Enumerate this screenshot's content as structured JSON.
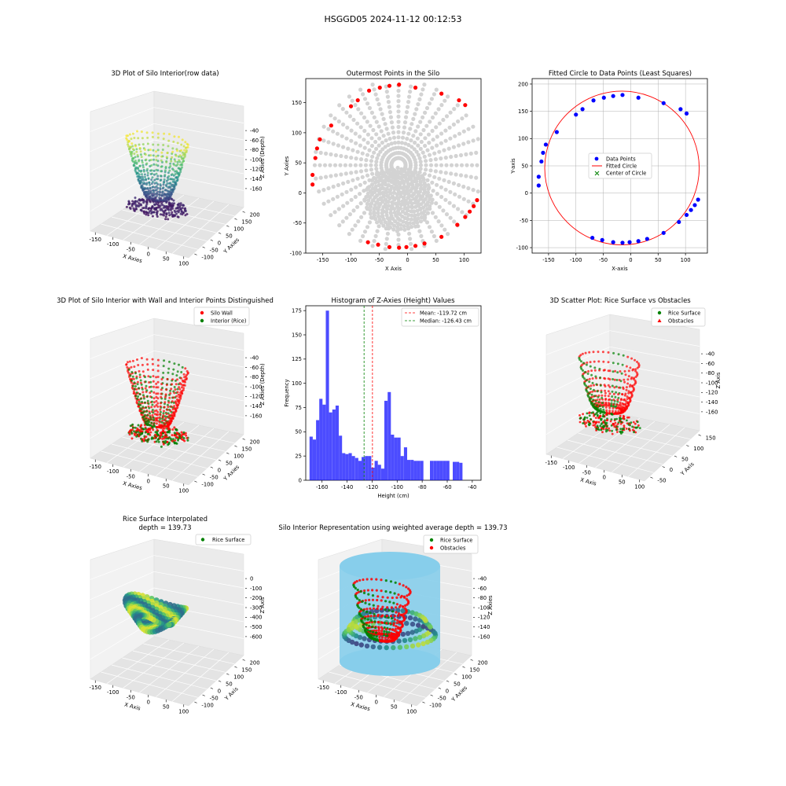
{
  "figure": {
    "suptitle": "HSGGD05 2024-11-12 00:12:53"
  },
  "chart_data": [
    {
      "id": "p1",
      "type": "scatter3d",
      "title": "3D Plot of Silo Interior(row data)",
      "xlabel": "X Axies",
      "ylabel": "Y Axies",
      "zlabel": "Z Axies (Depth)",
      "xticks": [
        "-150",
        "-100",
        "-50",
        "0",
        "50",
        "100"
      ],
      "yticks": [
        "-100",
        "-50",
        "0",
        "50",
        "100",
        "150",
        "200"
      ],
      "zticks": [
        "-40",
        "-60",
        "-80",
        "-100",
        "-120",
        "-140",
        "-160"
      ],
      "colormap": "viridis"
    },
    {
      "id": "p2",
      "type": "scatter",
      "title": "Outermost Points in the Silo",
      "xlabel": "X Axis",
      "ylabel": "Y Axies",
      "xlim": [
        -180,
        130
      ],
      "ylim": [
        -100,
        190
      ],
      "xticks": [
        -150,
        -100,
        -50,
        0,
        50,
        100
      ],
      "yticks": [
        -100,
        -50,
        0,
        50,
        100,
        150
      ],
      "outer_points": [
        [
          -168,
          14
        ],
        [
          -168,
          30
        ],
        [
          -163,
          58
        ],
        [
          -160,
          74
        ],
        [
          -155,
          89
        ],
        [
          -135,
          112
        ],
        [
          -100,
          144
        ],
        [
          -88,
          154
        ],
        [
          -68,
          170
        ],
        [
          -49,
          175
        ],
        [
          -32,
          178
        ],
        [
          -15,
          180
        ],
        [
          14,
          175
        ],
        [
          60,
          165
        ],
        [
          91,
          154
        ],
        [
          102,
          146
        ],
        [
          123,
          -12
        ],
        [
          117,
          -22
        ],
        [
          110,
          -31
        ],
        [
          102,
          -40
        ],
        [
          88,
          -53
        ],
        [
          60,
          -73
        ],
        [
          30,
          -84
        ],
        [
          14,
          -88
        ],
        [
          -2,
          -90
        ],
        [
          -15,
          -91
        ],
        [
          -32,
          -90
        ],
        [
          -52,
          -86
        ],
        [
          -70,
          -82
        ]
      ],
      "colors": {
        "outer": "#ff0000",
        "inner": "#d3d3d3"
      }
    },
    {
      "id": "p3",
      "type": "scatter",
      "title": "Fitted Circle to Data Points (Least Squares)",
      "xlabel": "X-axis",
      "ylabel": "Y-axis",
      "xlim": [
        -180,
        140
      ],
      "ylim": [
        -110,
        210
      ],
      "xticks": [
        -150,
        -100,
        -50,
        0,
        50,
        100
      ],
      "yticks": [
        -100,
        -50,
        0,
        50,
        100,
        150,
        200
      ],
      "points": [
        [
          -168,
          14
        ],
        [
          -168,
          30
        ],
        [
          -163,
          58
        ],
        [
          -160,
          74
        ],
        [
          -155,
          89
        ],
        [
          -135,
          112
        ],
        [
          -100,
          144
        ],
        [
          -88,
          154
        ],
        [
          -68,
          170
        ],
        [
          -49,
          175
        ],
        [
          -32,
          178
        ],
        [
          -15,
          180
        ],
        [
          14,
          175
        ],
        [
          60,
          165
        ],
        [
          91,
          154
        ],
        [
          102,
          146
        ],
        [
          123,
          -12
        ],
        [
          117,
          -22
        ],
        [
          110,
          -31
        ],
        [
          102,
          -40
        ],
        [
          88,
          -53
        ],
        [
          60,
          -73
        ],
        [
          30,
          -84
        ],
        [
          14,
          -88
        ],
        [
          -2,
          -90
        ],
        [
          -15,
          -91
        ],
        [
          -32,
          -90
        ],
        [
          -52,
          -86
        ],
        [
          -70,
          -82
        ]
      ],
      "circle": {
        "cx": -16,
        "cy": 46,
        "r": 141
      },
      "legend": [
        "Data Points",
        "Fitted Circle",
        "Center of Circle"
      ],
      "colors": {
        "points": "#0000ff",
        "circle": "#ff0000",
        "center": "#008000"
      }
    },
    {
      "id": "p4",
      "type": "scatter3d",
      "title": "3D Plot of Silo Interior with Wall and Interior Points Distinguished",
      "xlabel": "X Axies",
      "ylabel": "Y Axies",
      "zlabel": "Z Axies (Depth)",
      "xticks": [
        "-150",
        "-100",
        "-50",
        "0",
        "50",
        "100"
      ],
      "yticks": [
        "-100",
        "-50",
        "0",
        "50",
        "100",
        "150",
        "200"
      ],
      "zticks": [
        "-40",
        "-60",
        "-80",
        "-100",
        "-120",
        "-140",
        "-160"
      ],
      "legend": [
        "Silo Wall",
        "Interior (Rice)"
      ],
      "colors": {
        "wall": "#ff0000",
        "interior": "#008000"
      }
    },
    {
      "id": "p5",
      "type": "bar",
      "title": "Histogram of Z-Axies (Height) Values",
      "xlabel": "Height (cm)",
      "ylabel": "Frequency",
      "xlim": [
        -173,
        -33
      ],
      "ylim": [
        0,
        180
      ],
      "xticks": [
        -160,
        -140,
        -120,
        -100,
        -80,
        -60,
        -40
      ],
      "yticks": [
        0,
        25,
        50,
        75,
        100,
        125,
        150,
        175
      ],
      "bin_start": -170,
      "bin_width": 2.6,
      "values": [
        45,
        42,
        62,
        84,
        78,
        175,
        70,
        73,
        77,
        46,
        28,
        27,
        28,
        25,
        23,
        20,
        24,
        25,
        25,
        13,
        20,
        16,
        12,
        82,
        91,
        47,
        44,
        44,
        25,
        34,
        21,
        21,
        20,
        20,
        20,
        0,
        0,
        20,
        20,
        20,
        20,
        20,
        20,
        0,
        19,
        19,
        18
      ],
      "mean": -119.72,
      "median": -126.43,
      "legend": [
        "Mean: -119.72 cm",
        "Median: -126.43 cm"
      ],
      "colors": {
        "bars": "#0000ff",
        "mean": "#ff0000",
        "median": "#008000"
      }
    },
    {
      "id": "p6",
      "type": "scatter3d",
      "title": "3D Scatter Plot: Rice Surface vs Obstacles",
      "xlabel": "X Axis",
      "ylabel": "Y Axis",
      "zlabel": "Z Axis",
      "xticks": [
        "-150",
        "-100",
        "-50",
        "0",
        "50",
        "100"
      ],
      "yticks": [
        "-50",
        "0",
        "50",
        "100",
        "150"
      ],
      "zticks": [
        "-40",
        "-60",
        "-80",
        "-100",
        "-120",
        "-140",
        "-160"
      ],
      "legend": [
        "Rice Surface",
        "Obstacles"
      ],
      "colors": {
        "rice": "#008000",
        "obstacles": "#ff0000"
      }
    },
    {
      "id": "p7",
      "type": "surface3d",
      "title": "Rice Surface Interpolated",
      "subtitle": "depth = 139.73",
      "xlabel": "X Axis",
      "ylabel": "Y Axis",
      "zlabel": "Z Axis",
      "xticks": [
        "-150",
        "-100",
        "-50",
        "0",
        "50",
        "100"
      ],
      "yticks": [
        "-100",
        "-50",
        "0",
        "50",
        "100",
        "150",
        "200"
      ],
      "zticks": [
        "0",
        "-100",
        "-200",
        "-300",
        "-400",
        "-500",
        "-600"
      ],
      "legend": [
        "Rice Surface"
      ],
      "colors": {
        "rice": "#008000"
      }
    },
    {
      "id": "p8",
      "type": "surface3d",
      "title": "Silo Interior Representation using weighted average depth = 139.73",
      "xlabel": "X Axies",
      "ylabel": "Y Axies",
      "zlabel": "Z Axies",
      "xticks": [
        "-150",
        "-100",
        "-50",
        "0",
        "50",
        "100"
      ],
      "yticks": [
        "-100",
        "-50",
        "0",
        "50",
        "100",
        "150",
        "200"
      ],
      "zticks": [
        "-40",
        "-60",
        "-80",
        "-100",
        "-120",
        "-140",
        "-160"
      ],
      "legend": [
        "Rice Surface",
        "Obstacles"
      ],
      "colors": {
        "rice": "#008000",
        "obstacles": "#ff0000",
        "silo": "#87ceeb"
      }
    }
  ]
}
